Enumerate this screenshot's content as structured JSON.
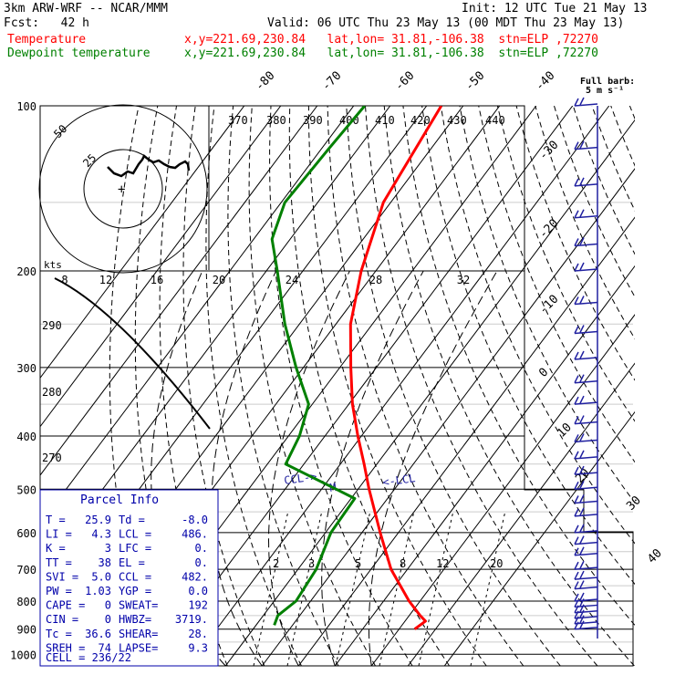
{
  "header": {
    "model": "3km ARW-WRF -- NCAR/MMM",
    "init": "Init: 12 UTC Tue 21 May 13",
    "fcst": "Fcst:   42 h",
    "valid": "Valid: 06 UTC Thu 23 May 13 (00 MDT Thu 23 May 13)",
    "temp_label": "Temperature",
    "dew_label": "Dewpoint temperature",
    "temp_loc": "x,y=221.69,230.84   lat,lon= 31.81,-106.38  stn=ELP ,72270",
    "dew_loc": "x,y=221.69,230.84   lat,lon= 31.81,-106.38  stn=ELP ,72270",
    "barb_key_1": "Full barb:",
    "barb_key_2": "5 m s⁻¹"
  },
  "colors": {
    "temperature": "#ff0000",
    "dewpoint": "#008000",
    "parcel_box": "#0000aa",
    "wind": "#2020a0",
    "grid": "#000000"
  },
  "chart_data": {
    "type": "skew-t log-p sounding",
    "y_axis": {
      "label": "",
      "unit": "hPa",
      "scale": "log",
      "range": [
        1000,
        100
      ],
      "ticks": [
        100,
        200,
        300,
        400,
        500,
        600,
        700,
        800,
        900,
        1000
      ]
    },
    "x_axis": {
      "unit": "degC",
      "skewed": true,
      "ticks": [
        -80,
        -70,
        -60,
        -50,
        -40,
        -30,
        -20,
        -10,
        0,
        10,
        20,
        30,
        40
      ]
    },
    "theta_labels": [
      "370",
      "380",
      "390",
      "400",
      "410",
      "420",
      "430",
      "440",
      "290",
      "280",
      "270"
    ],
    "mixing_ratio_labels": [
      "2",
      "3",
      "5",
      "8",
      "12",
      "20"
    ],
    "temperature": [
      {
        "p": 900,
        "t": 34.3
      },
      {
        "p": 870,
        "t": 35.6
      },
      {
        "p": 850,
        "t": 33.0
      },
      {
        "p": 800,
        "t": 27.0
      },
      {
        "p": 700,
        "t": 15.5
      },
      {
        "p": 600,
        "t": 5.0
      },
      {
        "p": 500,
        "t": -7.0
      },
      {
        "p": 450,
        "t": -13.5
      },
      {
        "p": 400,
        "t": -21.0
      },
      {
        "p": 350,
        "t": -29.0
      },
      {
        "p": 300,
        "t": -37.0
      },
      {
        "p": 250,
        "t": -46.0
      },
      {
        "p": 200,
        "t": -54.0
      },
      {
        "p": 150,
        "t": -62.0
      },
      {
        "p": 100,
        "t": -66.0
      }
    ],
    "dewpoint": [
      {
        "p": 885,
        "t": -5.0
      },
      {
        "p": 850,
        "t": -6.0
      },
      {
        "p": 800,
        "t": -4.0
      },
      {
        "p": 700,
        "t": -5.0
      },
      {
        "p": 600,
        "t": -8.5
      },
      {
        "p": 520,
        "t": -9.0
      },
      {
        "p": 500,
        "t": -16.0
      },
      {
        "p": 450,
        "t": -35.0
      },
      {
        "p": 400,
        "t": -37.0
      },
      {
        "p": 350,
        "t": -41.0
      },
      {
        "p": 300,
        "t": -52.0
      },
      {
        "p": 250,
        "t": -64.0
      },
      {
        "p": 200,
        "t": -77.0
      },
      {
        "p": 175,
        "t": -85.0
      },
      {
        "p": 150,
        "t": -89.0
      },
      {
        "p": 120,
        "t": -88.0
      },
      {
        "p": 100,
        "t": -87.0
      }
    ],
    "annotations": [
      "CCL->",
      "M",
      "<-LCL"
    ],
    "hodograph": {
      "speed_unit": "kts",
      "ring_labels": [
        "50",
        "25"
      ]
    },
    "wind_x_labels": [
      "8",
      "12",
      "16",
      "20",
      "24",
      "28",
      "32"
    ],
    "wind_profile_pressures": [
      100,
      120,
      140,
      160,
      180,
      200,
      230,
      260,
      290,
      320,
      350,
      380,
      410,
      440,
      470,
      500,
      530,
      560,
      600,
      630,
      660,
      700,
      730,
      760,
      800,
      820,
      840,
      860,
      880,
      900
    ]
  },
  "parcel_info": {
    "title": "Parcel Info",
    "rows": [
      [
        "T  =",
        "25.9",
        "Td =",
        "-8.0"
      ],
      [
        "LI =",
        "4.3",
        "LCL =",
        "486."
      ],
      [
        "K  =",
        "3",
        "LFC =",
        "0."
      ],
      [
        "TT =",
        "38",
        "EL  =",
        "0."
      ],
      [
        "SVI =",
        "5.0",
        "CCL =",
        "482."
      ],
      [
        "PW =",
        "1.03",
        "YGP =",
        "0.0"
      ],
      [
        "CAPE =",
        "0",
        "SWEAT=",
        "192"
      ],
      [
        "CIN =",
        "0",
        "HWBZ=",
        "3719."
      ],
      [
        "Tc =",
        "36.6",
        "SHEAR=",
        "28."
      ],
      [
        "SREH =",
        "74",
        "LAPSE=",
        "9.3"
      ]
    ],
    "cell_label": "CELL = 236/22"
  }
}
